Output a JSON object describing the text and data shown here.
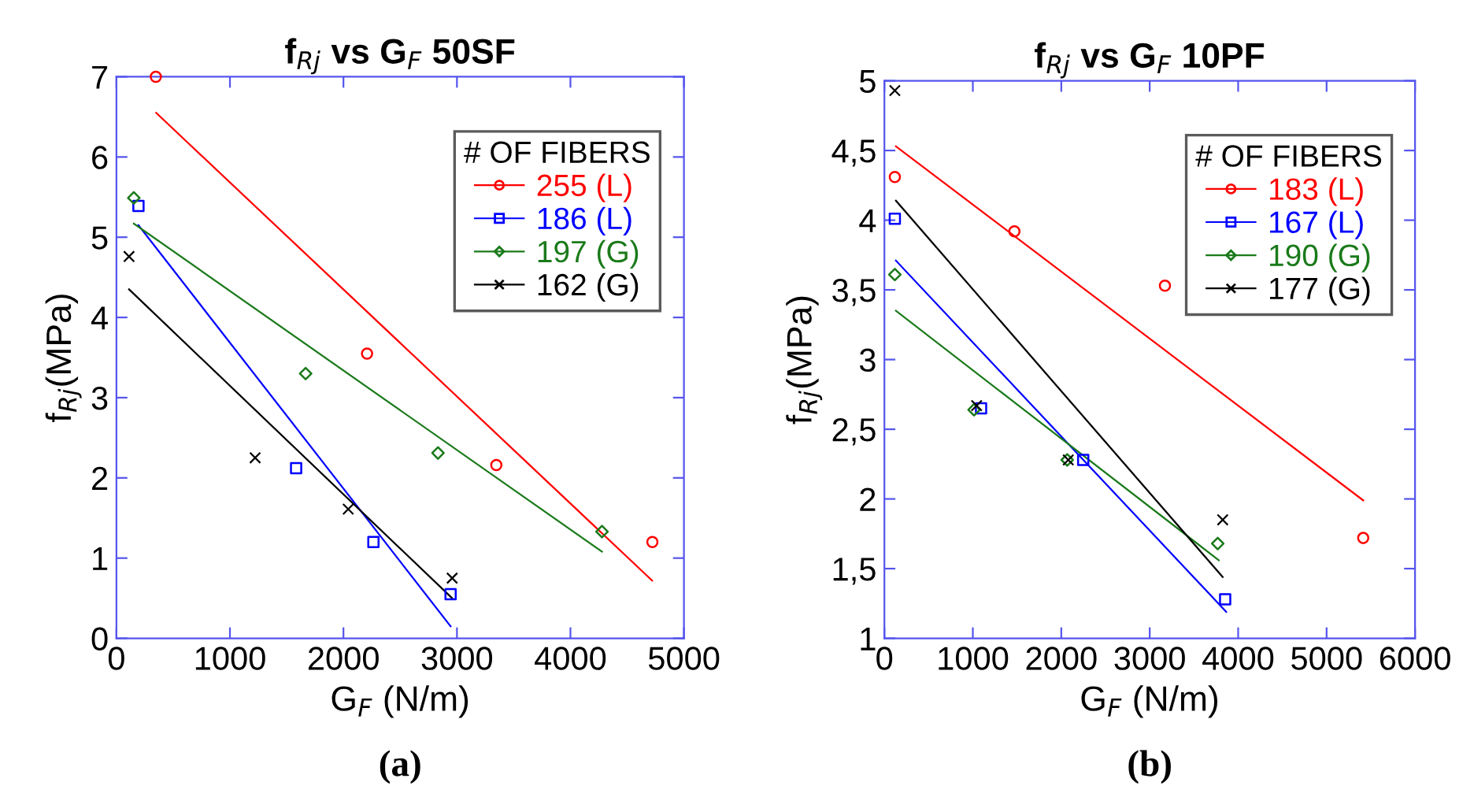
{
  "chart_data": [
    {
      "type": "scatter",
      "title": "f$_{Rj}$ vs G$_{F}$ 50SF",
      "xlabel": "G$_{F}$ (N/m)",
      "ylabel": "f$_{Rj}$(MPa)",
      "legend_title": "# OF FIBERS",
      "legend": "top right",
      "grid": false,
      "xlim": [
        0,
        5000
      ],
      "ylim": [
        0,
        7
      ],
      "xticks": [
        0,
        1000,
        2000,
        3000,
        4000,
        5000
      ],
      "yticks": [
        0,
        1,
        2,
        3,
        4,
        5,
        6,
        7
      ],
      "annotations": [
        "(a)"
      ],
      "series": [
        {
          "name": "255 (L)",
          "color": "#ff0000",
          "marker": "circle",
          "x": [
            347,
            2208,
            3347,
            4722
          ],
          "values": [
            7.0,
            3.55,
            2.16,
            1.2
          ]
        },
        {
          "name": "186 (L)",
          "color": "#0000ff",
          "marker": "square",
          "x": [
            194,
            1583,
            2264,
            2944
          ],
          "values": [
            5.39,
            2.12,
            1.2,
            0.55
          ]
        },
        {
          "name": "197 (G)",
          "color": "#1a7a1a",
          "marker": "diamond",
          "x": [
            153,
            1667,
            2833,
            4278
          ],
          "values": [
            5.49,
            3.3,
            2.31,
            1.33
          ]
        },
        {
          "name": "162 (G)",
          "color": "#000000",
          "marker": "cross",
          "x": [
            111,
            1222,
            2042,
            2958
          ],
          "values": [
            4.76,
            2.25,
            1.61,
            0.75
          ]
        },
        {
          "type": "line",
          "color": "#ff0000",
          "x": [
            350,
            4720
          ],
          "values": [
            6.55,
            0.72
          ]
        },
        {
          "type": "line",
          "color": "#0000ff",
          "x": [
            194,
            2944
          ],
          "values": [
            5.15,
            0.15
          ]
        },
        {
          "type": "line",
          "color": "#1a7a1a",
          "x": [
            153,
            4278
          ],
          "values": [
            5.17,
            1.08
          ]
        },
        {
          "type": "line",
          "color": "#000000",
          "x": [
            111,
            2958
          ],
          "values": [
            4.35,
            0.5
          ]
        }
      ]
    },
    {
      "type": "scatter",
      "title": "f$_{Rj}$ vs G$_{F}$ 10PF",
      "xlabel": "G$_{F}$ (N/m)",
      "ylabel": "f$_{Rj}$(MPa)",
      "legend_title": "# OF FIBERS",
      "legend": "top right",
      "grid": false,
      "xlim": [
        0,
        6000
      ],
      "ylim": [
        1,
        5
      ],
      "xticks": [
        0,
        1000,
        2000,
        3000,
        4000,
        5000,
        6000
      ],
      "yticks": [
        1,
        {
          "value": 1.5,
          "label": "1,5"
        },
        2,
        {
          "value": 2.5,
          "label": "2,5"
        },
        3,
        {
          "value": 3.5,
          "label": "3,5"
        },
        4,
        {
          "value": 4.5,
          "label": "4,5"
        },
        5
      ],
      "annotations": [
        "(b)"
      ],
      "series": [
        {
          "name": "183 (L)",
          "color": "#ff0000",
          "marker": "circle",
          "x": [
            118,
            1470,
            3172,
            5414
          ],
          "values": [
            4.31,
            3.92,
            3.53,
            1.72
          ]
        },
        {
          "name": "167 (L)",
          "color": "#0000ff",
          "marker": "square",
          "x": [
            118,
            1093,
            2248,
            3853
          ],
          "values": [
            4.01,
            2.65,
            2.28,
            1.28
          ]
        },
        {
          "name": "190 (G)",
          "color": "#1a7a1a",
          "marker": "diamond",
          "x": [
            118,
            1014,
            2067,
            3769
          ],
          "values": [
            3.61,
            2.64,
            2.28,
            1.68
          ]
        },
        {
          "name": "177 (G)",
          "color": "#000000",
          "marker": "cross",
          "x": [
            118,
            1043,
            2079,
            3825
          ],
          "values": [
            4.93,
            2.67,
            2.28,
            1.85
          ]
        },
        {
          "type": "line",
          "color": "#ff0000",
          "x": [
            130,
            5414
          ],
          "values": [
            4.53,
            1.99
          ]
        },
        {
          "type": "line",
          "color": "#0000ff",
          "x": [
            130,
            3865
          ],
          "values": [
            3.71,
            1.19
          ]
        },
        {
          "type": "line",
          "color": "#1a7a1a",
          "x": [
            130,
            3781
          ],
          "values": [
            3.35,
            1.56
          ]
        },
        {
          "type": "line",
          "color": "#000000",
          "x": [
            130,
            3825
          ],
          "values": [
            4.14,
            1.44
          ]
        }
      ]
    }
  ]
}
